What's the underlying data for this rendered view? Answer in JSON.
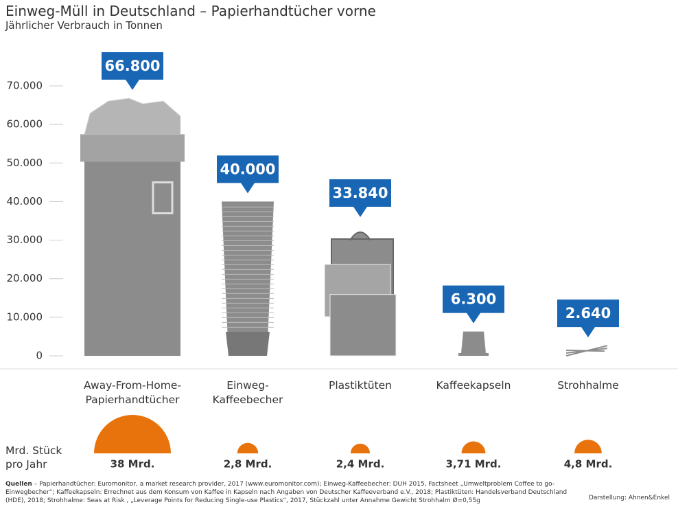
{
  "chart_data": {
    "type": "bar",
    "title": "Einweg-Müll in Deutschland – Papierhandtücher vorne",
    "subtitle": "Jährlicher Verbrauch in Tonnen",
    "categories": [
      "Away-From-Home-\nPapierhandtücher",
      "Einweg-\nKaffeebecher",
      "Plastiktüten",
      "Kaffeekapseln",
      "Strohhalme"
    ],
    "values": [
      66800,
      40000,
      33840,
      6300,
      2640
    ],
    "value_labels": [
      "66.800",
      "40.000",
      "33.840",
      "6.300",
      "2.640"
    ],
    "color": "#8c8c8c",
    "label_color": "#1866b4",
    "ylim": [
      0,
      70000
    ],
    "yticks": [
      0,
      {
        "value": 10000,
        "label": "10.000"
      },
      {
        "value": 20000,
        "label": "20.000"
      },
      {
        "value": 30000,
        "label": "30.000"
      },
      {
        "value": 40000,
        "label": "40.000"
      },
      {
        "value": 50000,
        "label": "50.000"
      },
      {
        "value": 60000,
        "label": "60.000"
      },
      {
        "value": 70000,
        "label": "70.000"
      }
    ],
    "pieces": {
      "label": "Mrd. Stück\npro Jahr",
      "color": "#e8730c",
      "values": [
        38,
        2.8,
        2.4,
        3.71,
        4.8
      ],
      "value_labels": [
        "38 Mrd.",
        "2,8 Mrd.",
        "2,4 Mrd.",
        "3,71 Mrd.",
        "4,8 Mrd."
      ]
    },
    "source_label": "Quellen",
    "source": " – Papierhandtücher: Euromonitor, a market research provider, 2017 (www.euromonitor.com); Einweg-Kaffeebecher: DUH 2015, Factsheet „Umweltproblem Coffee to go-Einwegbecher“; Kaffeekapseln: Errechnet aus dem Konsum von Kaffee in Kapseln nach Angaben von Deutscher Kaffeeverband e.V., 2018; Plastiktüten: Handelsverband Deutschland (HDE), 2018; Strohhalme: Seas at Risk , „Leverage Points for Reducing Single-use Plastics“, 2017, Stückzahl unter Annahme Gewicht Strohhalm Ø=0,55g",
    "credit": "Darstellung: Ahnen&Enkel"
  }
}
